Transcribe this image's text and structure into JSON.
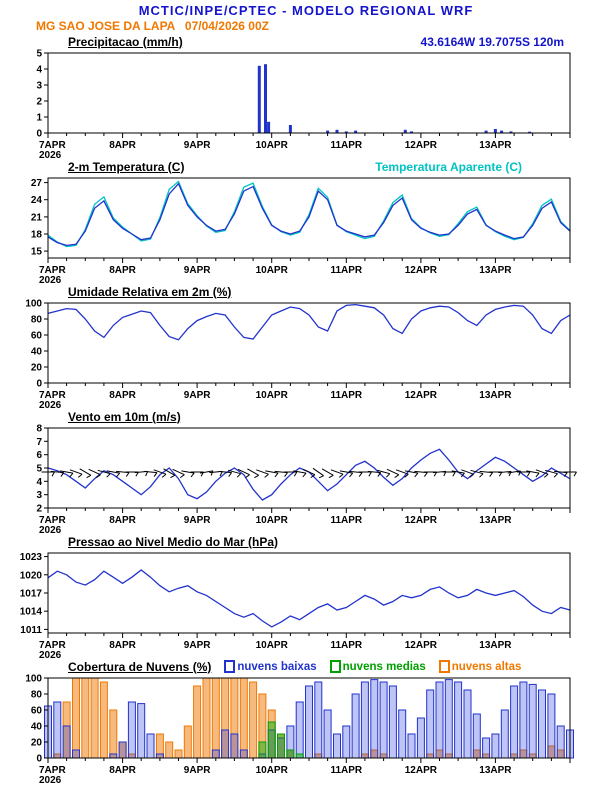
{
  "header": {
    "title": "MCTIC/INPE/CPTEC - MODELO REGIONAL WRF",
    "station_line": "MG SAO JOSE DA LAPA   07/04/2026 00Z",
    "location": "43.6164W 19.7075S 120m"
  },
  "colors": {
    "header_blue": "#1414cc",
    "orange": "#f07800",
    "line_blue": "#2233cc",
    "cyan": "#00c3c3",
    "green": "#00a000",
    "black": "#000000"
  },
  "chart_data": {
    "type": "meteogram",
    "x_axis": {
      "hours": 168,
      "sample_interval_hours": 3,
      "major_tick_hours": 24,
      "minor_tick_hours": 6,
      "tick_labels": [
        "7APR",
        "8APR",
        "9APR",
        "10APR",
        "11APR",
        "12APR",
        "13APR"
      ],
      "year": "2026"
    },
    "panels": [
      {
        "id": "precip",
        "title": "Precipitacao (mm/h)",
        "type": "bar",
        "ylim": [
          0,
          5
        ],
        "yticks": [
          0,
          1,
          2,
          3,
          4,
          5
        ],
        "bars": {
          "color": "#2233cc",
          "t": [
            68,
            70,
            71,
            78,
            90,
            93,
            96,
            99,
            115,
            117,
            141,
            144,
            146,
            149,
            155
          ],
          "v": [
            4.2,
            4.3,
            0.7,
            0.5,
            0.15,
            0.2,
            0.1,
            0.15,
            0.2,
            0.1,
            0.15,
            0.25,
            0.15,
            0.1,
            0.08
          ]
        }
      },
      {
        "id": "temp",
        "title": "2-m Temperatura (C)",
        "extra_label": "Temperatura Aparente (C)",
        "type": "line",
        "ylim": [
          13.8,
          27.8
        ],
        "yticks": [
          15,
          18,
          21,
          24,
          27
        ],
        "series": [
          {
            "name": "Temperatura Aparente (C)",
            "color": "#00c3c3",
            "values": [
              17.8,
              16.6,
              15.8,
              16.0,
              18.8,
              23.2,
              24.5,
              20.8,
              19.2,
              18.0,
              16.8,
              17.1,
              20.9,
              25.8,
              27.2,
              23.3,
              21.2,
              19.4,
              18.3,
              18.6,
              21.9,
              26.2,
              26.9,
              22.8,
              19.6,
              18.4,
              17.8,
              18.3,
              21.4,
              26.0,
              24.4,
              19.6,
              18.4,
              17.8,
              17.2,
              17.6,
              20.3,
              23.5,
              24.8,
              20.7,
              19.1,
              18.2,
              17.6,
              17.9,
              19.8,
              21.9,
              22.7,
              19.6,
              18.4,
              17.6,
              17.0,
              17.4,
              19.8,
              23.0,
              24.1,
              20.2,
              18.6
            ]
          },
          {
            "name": "2-m Temperatura (C)",
            "color": "#2233cc",
            "values": [
              17.5,
              16.5,
              16.0,
              16.2,
              18.5,
              22.5,
              23.8,
              20.5,
              19.0,
              18.0,
              17.0,
              17.3,
              20.5,
              25.0,
              26.8,
              23.0,
              21.0,
              19.5,
              18.5,
              18.8,
              21.5,
              25.5,
              26.3,
              22.5,
              19.5,
              18.5,
              18.0,
              18.5,
              21.0,
              25.5,
              24.0,
              19.5,
              18.5,
              18.0,
              17.5,
              17.8,
              20.0,
              23.0,
              24.3,
              20.5,
              19.0,
              18.3,
              17.8,
              18.0,
              19.5,
              21.5,
              22.3,
              19.5,
              18.5,
              17.8,
              17.2,
              17.5,
              19.5,
              22.5,
              23.6,
              20.0,
              18.5
            ]
          }
        ]
      },
      {
        "id": "rh",
        "title": "Umidade Relativa em 2m (%)",
        "type": "line",
        "ylim": [
          0,
          100
        ],
        "yticks": [
          0,
          20,
          40,
          60,
          80,
          100
        ],
        "series": [
          {
            "name": "Umidade Relativa",
            "color": "#2233cc",
            "values": [
              87,
              90,
              93,
              92,
              80,
              65,
              57,
              72,
              82,
              86,
              90,
              88,
              72,
              58,
              54,
              68,
              78,
              83,
              87,
              85,
              70,
              57,
              55,
              70,
              85,
              90,
              95,
              93,
              85,
              70,
              65,
              90,
              97,
              98,
              96,
              94,
              85,
              68,
              62,
              80,
              90,
              94,
              96,
              95,
              88,
              78,
              72,
              85,
              92,
              95,
              97,
              96,
              85,
              68,
              62,
              78,
              85
            ]
          }
        ]
      },
      {
        "id": "wind",
        "title": "Vento em 10m (m/s)",
        "type": "line",
        "ylim": [
          2,
          8
        ],
        "yticks": [
          2,
          3,
          4,
          5,
          6,
          7,
          8
        ],
        "series": [
          {
            "name": "Velocidade do vento",
            "color": "#2233cc",
            "values": [
              5.0,
              4.8,
              4.5,
              4.0,
              3.5,
              4.2,
              4.8,
              4.5,
              4.0,
              3.5,
              3.0,
              3.6,
              4.5,
              5.0,
              4.2,
              3.0,
              2.7,
              3.2,
              4.0,
              4.6,
              5.0,
              4.5,
              3.4,
              2.6,
              3.0,
              3.8,
              4.5,
              5.0,
              4.7,
              4.0,
              3.3,
              3.8,
              4.5,
              5.2,
              5.5,
              5.0,
              4.3,
              3.7,
              4.2,
              5.0,
              5.6,
              6.1,
              6.4,
              5.6,
              4.7,
              4.2,
              4.8,
              5.3,
              5.8,
              5.5,
              5.0,
              4.5,
              4.0,
              4.4,
              5.0,
              4.6,
              4.2
            ]
          }
        ],
        "barbs": {
          "y": 4.7,
          "color": "#000000",
          "dirs": [
            90,
            95,
            100,
            110,
            120,
            115,
            105,
            100,
            95,
            90,
            85,
            95,
            110,
            120,
            115,
            100,
            90,
            80,
            85,
            95,
            105,
            115,
            120,
            110,
            100,
            95,
            90,
            100,
            115,
            125,
            120,
            110,
            100,
            95,
            90,
            95,
            105,
            115,
            110,
            100,
            95,
            90,
            85,
            90,
            100,
            110,
            105,
            95,
            90,
            85,
            80,
            90,
            100,
            110,
            105,
            95,
            90
          ]
        }
      },
      {
        "id": "slp",
        "title": "Pressao ao Nivel Medio do Mar (hPa)",
        "type": "line",
        "ylim": [
          1010.4,
          1023.6
        ],
        "yticks": [
          1011,
          1014,
          1017,
          1020,
          1023
        ],
        "series": [
          {
            "name": "Pressao",
            "color": "#2233cc",
            "values": [
              1019.5,
              1020.6,
              1020.0,
              1018.8,
              1018.3,
              1019.2,
              1020.6,
              1019.6,
              1018.6,
              1019.6,
              1020.8,
              1019.6,
              1018.2,
              1017.2,
              1017.8,
              1018.2,
              1017.2,
              1016.6,
              1015.6,
              1014.6,
              1013.6,
              1013.0,
              1013.6,
              1012.4,
              1011.4,
              1012.2,
              1013.2,
              1012.6,
              1013.6,
              1014.6,
              1015.2,
              1014.2,
              1014.6,
              1015.6,
              1016.6,
              1016.0,
              1015.0,
              1015.6,
              1016.6,
              1016.2,
              1016.6,
              1017.6,
              1018.0,
              1017.0,
              1016.2,
              1016.6,
              1017.6,
              1017.0,
              1016.6,
              1017.0,
              1017.4,
              1016.4,
              1015.0,
              1014.0,
              1013.6,
              1014.6,
              1014.2
            ]
          }
        ]
      },
      {
        "id": "clouds",
        "title": "Cobertura de Nuvens (%)",
        "type": "cloudbar",
        "ylim": [
          0,
          100
        ],
        "yticks": [
          0,
          20,
          40,
          60,
          80,
          100
        ],
        "legend": [
          {
            "label": "nuvens baixas",
            "color": "#2233cc"
          },
          {
            "label": "nuvens medias",
            "color": "#00a000"
          },
          {
            "label": "nuvens altas",
            "color": "#f07800"
          }
        ],
        "series": [
          {
            "name": "nuvens altas",
            "color": "#f07800",
            "fill": "rgba(240,130,20,0.55)",
            "values": [
              0,
              5,
              70,
              100,
              100,
              100,
              95,
              60,
              20,
              5,
              0,
              0,
              30,
              20,
              10,
              40,
              90,
              100,
              100,
              100,
              100,
              100,
              95,
              80,
              60,
              30,
              10,
              0,
              0,
              5,
              0,
              0,
              0,
              0,
              5,
              10,
              5,
              0,
              0,
              0,
              0,
              5,
              10,
              5,
              0,
              0,
              10,
              5,
              0,
              0,
              5,
              10,
              5,
              0,
              15,
              10,
              0
            ]
          },
          {
            "name": "nuvens baixas",
            "color": "#2233cc",
            "fill": "rgba(40,60,220,0.30)",
            "values": [
              65,
              70,
              40,
              10,
              0,
              0,
              0,
              5,
              20,
              70,
              68,
              30,
              5,
              0,
              0,
              0,
              0,
              0,
              10,
              35,
              30,
              10,
              0,
              5,
              35,
              25,
              40,
              70,
              90,
              95,
              60,
              30,
              40,
              80,
              95,
              98,
              95,
              90,
              60,
              30,
              50,
              85,
              95,
              98,
              95,
              85,
              55,
              25,
              30,
              60,
              90,
              95,
              92,
              85,
              80,
              40,
              35
            ]
          },
          {
            "name": "nuvens medias",
            "color": "#00a000",
            "fill": "rgba(0,170,0,0.45)",
            "values": [
              0,
              0,
              0,
              0,
              0,
              0,
              0,
              0,
              0,
              0,
              0,
              0,
              0,
              0,
              0,
              0,
              0,
              0,
              0,
              0,
              0,
              0,
              0,
              20,
              45,
              30,
              10,
              5,
              0,
              0,
              0,
              0,
              0,
              0,
              0,
              0,
              0,
              0,
              0,
              0,
              0,
              0,
              0,
              0,
              0,
              0,
              0,
              0,
              0,
              0,
              0,
              0,
              0,
              0,
              0,
              0,
              0
            ]
          }
        ]
      }
    ]
  }
}
